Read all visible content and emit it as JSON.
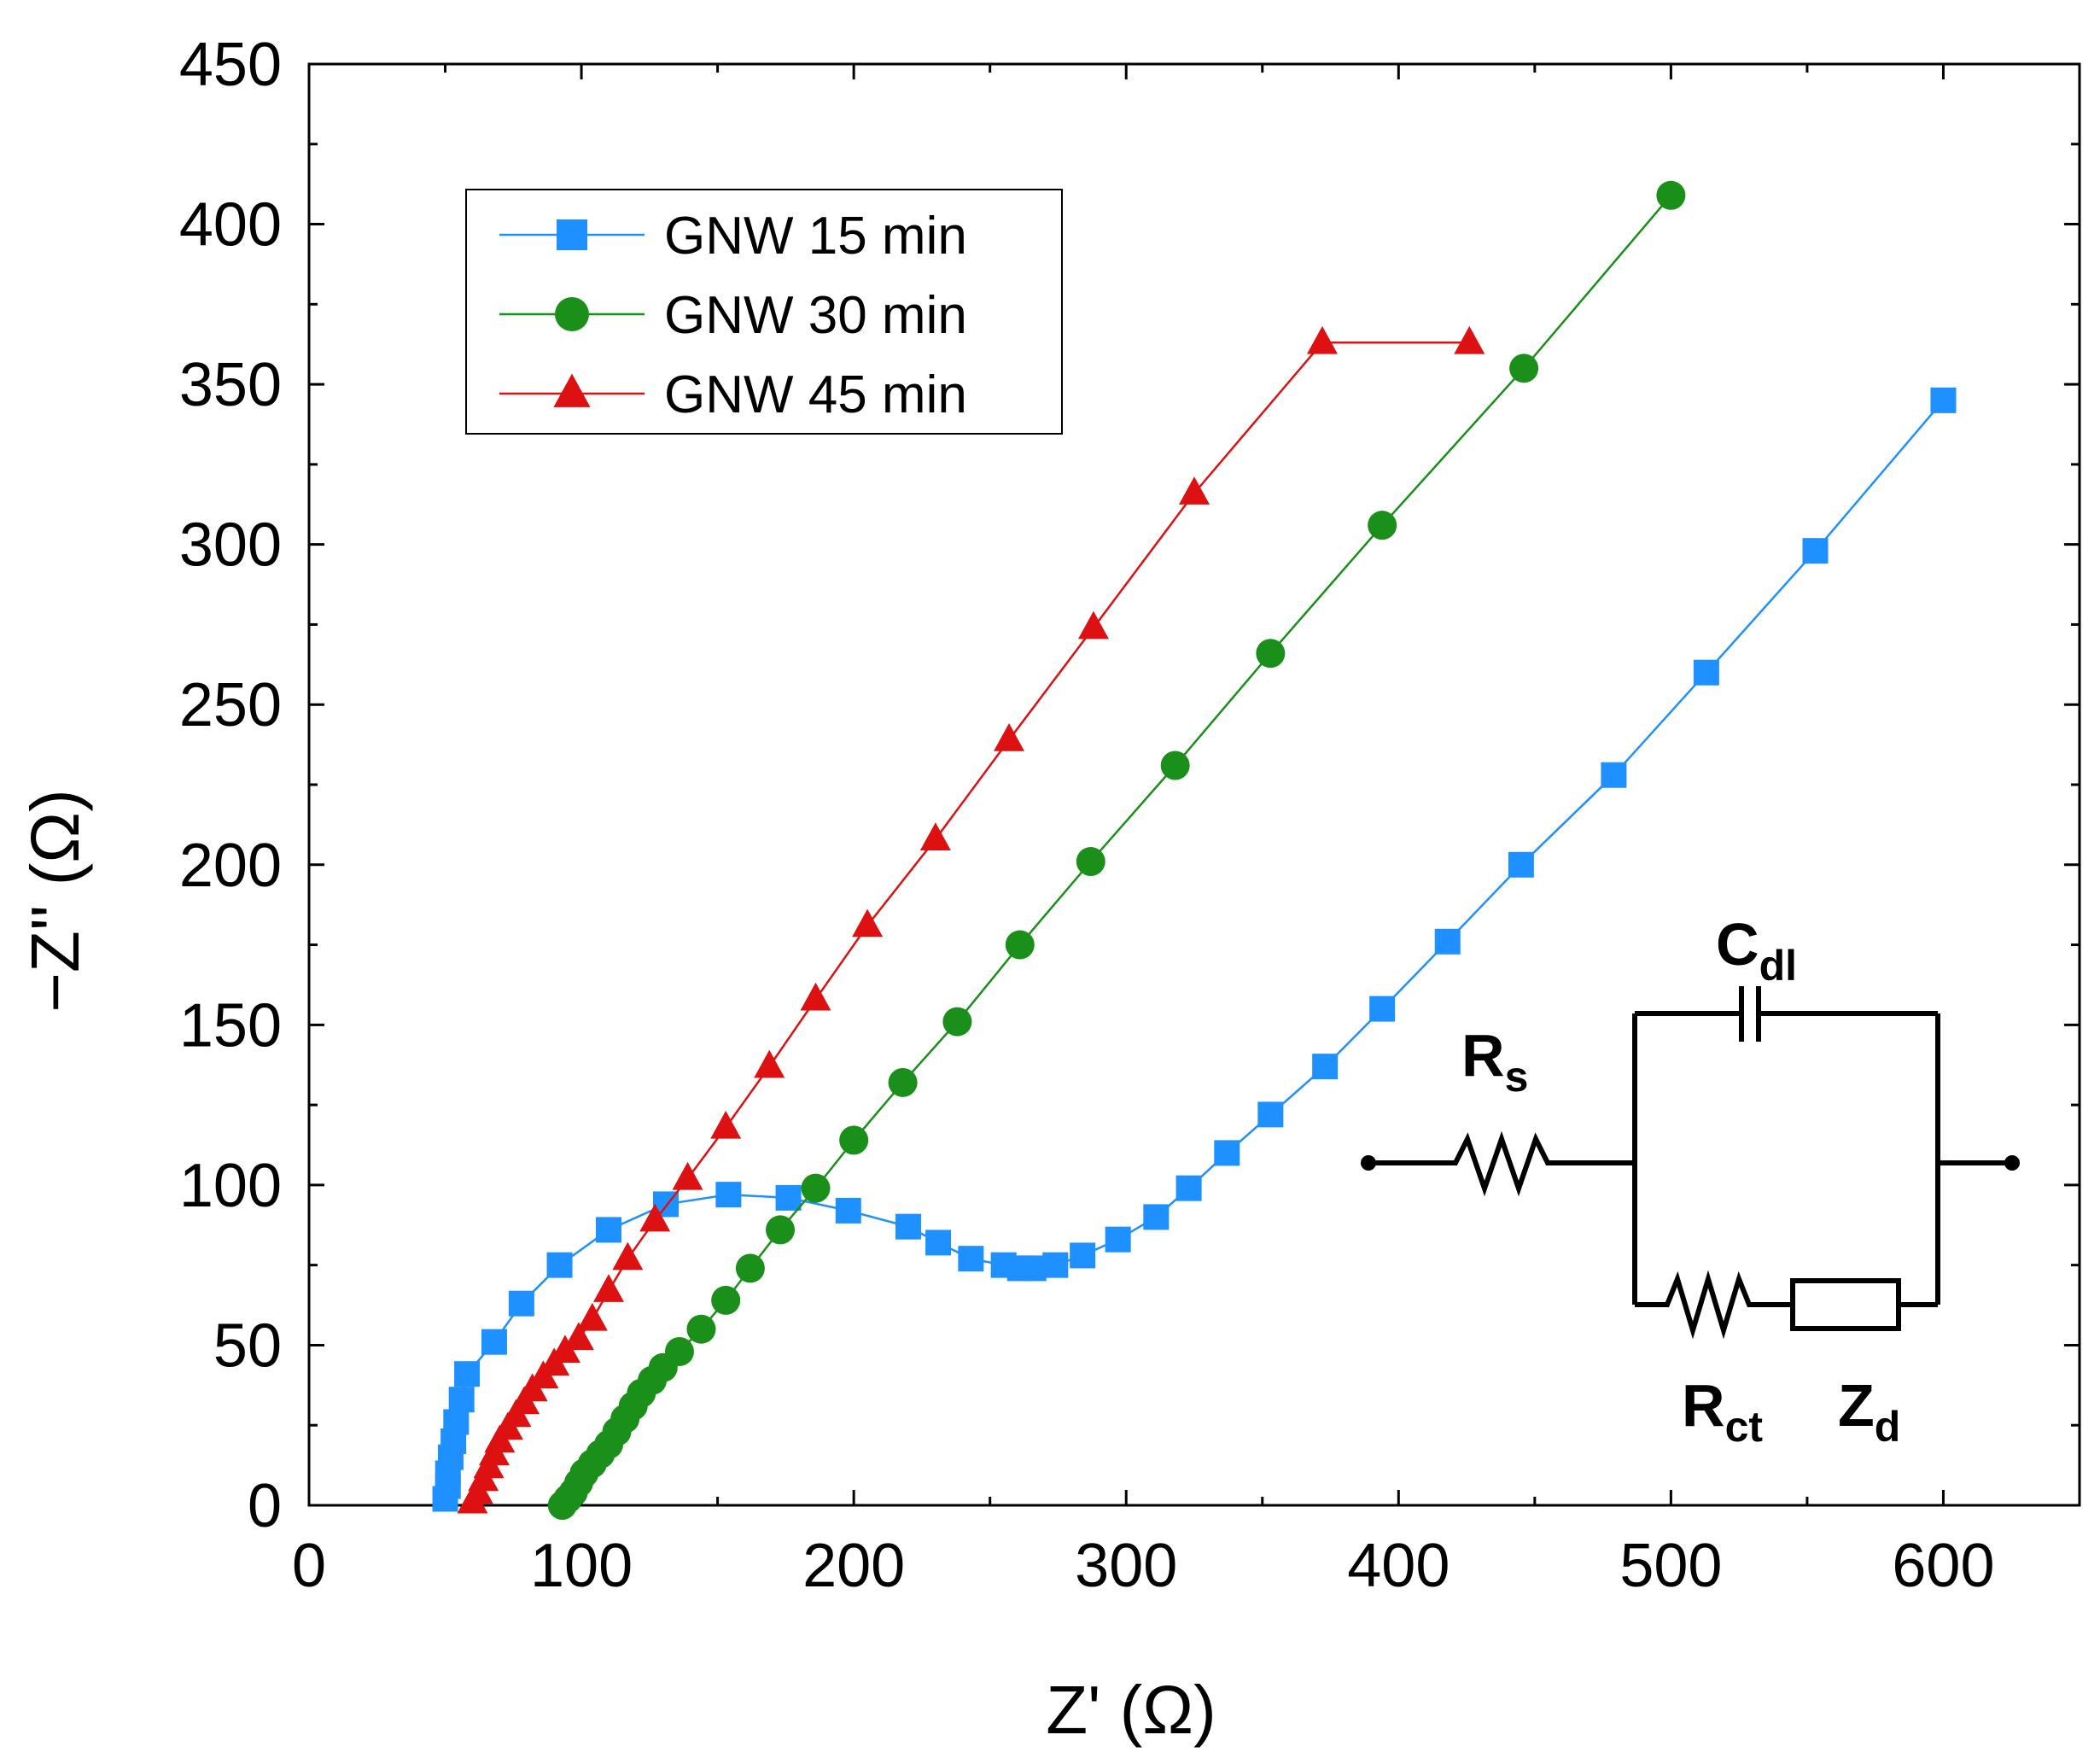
{
  "chart_data": {
    "type": "scatter",
    "xlabel": "Z' (Ω)",
    "ylabel": "−Z'' (Ω)",
    "xlim": [
      0,
      650
    ],
    "ylim": [
      0,
      450
    ],
    "x_ticks": [
      "0",
      "100",
      "200",
      "300",
      "400",
      "500",
      "600"
    ],
    "y_ticks": [
      "0",
      "50",
      "100",
      "150",
      "200",
      "250",
      "300",
      "350",
      "400",
      "450"
    ],
    "grid": false,
    "legend_position": "top-left",
    "series": [
      {
        "name": "GNW 15 min",
        "color": "#1e90ff",
        "marker": "square",
        "points": [
          [
            50,
            2
          ],
          [
            51,
            6
          ],
          [
            51,
            10
          ],
          [
            52,
            15
          ],
          [
            53,
            20
          ],
          [
            54,
            26
          ],
          [
            56,
            33
          ],
          [
            58,
            41
          ],
          [
            68,
            51
          ],
          [
            78,
            63
          ],
          [
            92,
            75
          ],
          [
            110,
            86
          ],
          [
            131,
            94
          ],
          [
            154,
            97
          ],
          [
            176,
            96
          ],
          [
            198,
            92
          ],
          [
            220,
            87
          ],
          [
            231,
            82
          ],
          [
            243,
            77
          ],
          [
            255,
            75
          ],
          [
            261,
            74
          ],
          [
            266,
            74
          ],
          [
            274,
            75
          ],
          [
            284,
            78
          ],
          [
            297,
            83
          ],
          [
            311,
            90
          ],
          [
            323,
            99
          ],
          [
            337,
            110
          ],
          [
            353,
            122
          ],
          [
            373,
            137
          ],
          [
            394,
            155
          ],
          [
            418,
            176
          ],
          [
            445,
            200
          ],
          [
            479,
            228
          ],
          [
            513,
            260
          ],
          [
            553,
            298
          ],
          [
            600,
            345
          ]
        ]
      },
      {
        "name": "GNW 30 min",
        "color": "#1a8f1a",
        "marker": "circle",
        "points": [
          [
            93,
            0
          ],
          [
            95,
            2
          ],
          [
            97,
            4
          ],
          [
            99,
            7
          ],
          [
            101,
            10
          ],
          [
            104,
            13
          ],
          [
            107,
            16
          ],
          [
            110,
            19
          ],
          [
            113,
            23
          ],
          [
            116,
            27
          ],
          [
            119,
            31
          ],
          [
            122,
            35
          ],
          [
            126,
            39
          ],
          [
            130,
            43
          ],
          [
            136,
            48
          ],
          [
            144,
            55
          ],
          [
            153,
            64
          ],
          [
            162,
            74
          ],
          [
            173,
            86
          ],
          [
            186,
            99
          ],
          [
            200,
            114
          ],
          [
            218,
            132
          ],
          [
            238,
            151
          ],
          [
            261,
            175
          ],
          [
            287,
            201
          ],
          [
            318,
            231
          ],
          [
            353,
            266
          ],
          [
            394,
            306
          ],
          [
            446,
            355
          ],
          [
            500,
            409
          ]
        ]
      },
      {
        "name": "GNW 45 min",
        "color": "#dd1111",
        "marker": "triangle",
        "points": [
          [
            60,
            1
          ],
          [
            62,
            4
          ],
          [
            64,
            8
          ],
          [
            66,
            12
          ],
          [
            68,
            16
          ],
          [
            70,
            20
          ],
          [
            73,
            24
          ],
          [
            76,
            28
          ],
          [
            79,
            32
          ],
          [
            82,
            36
          ],
          [
            86,
            40
          ],
          [
            90,
            44
          ],
          [
            94,
            48
          ],
          [
            99,
            52
          ],
          [
            104,
            58
          ],
          [
            110,
            67
          ],
          [
            117,
            77
          ],
          [
            127,
            89
          ],
          [
            139,
            102
          ],
          [
            153,
            118
          ],
          [
            169,
            137
          ],
          [
            186,
            158
          ],
          [
            205,
            181
          ],
          [
            230,
            208
          ],
          [
            257,
            239
          ],
          [
            288,
            274
          ],
          [
            325,
            316
          ],
          [
            372,
            363
          ],
          [
            426,
            363
          ]
        ]
      }
    ],
    "inset_circuit": {
      "labels": [
        {
          "main": "R",
          "sub": "s"
        },
        {
          "main": "C",
          "sub": "dl"
        },
        {
          "main": "R",
          "sub": "ct"
        },
        {
          "main": "Z",
          "sub": "d"
        }
      ]
    }
  }
}
